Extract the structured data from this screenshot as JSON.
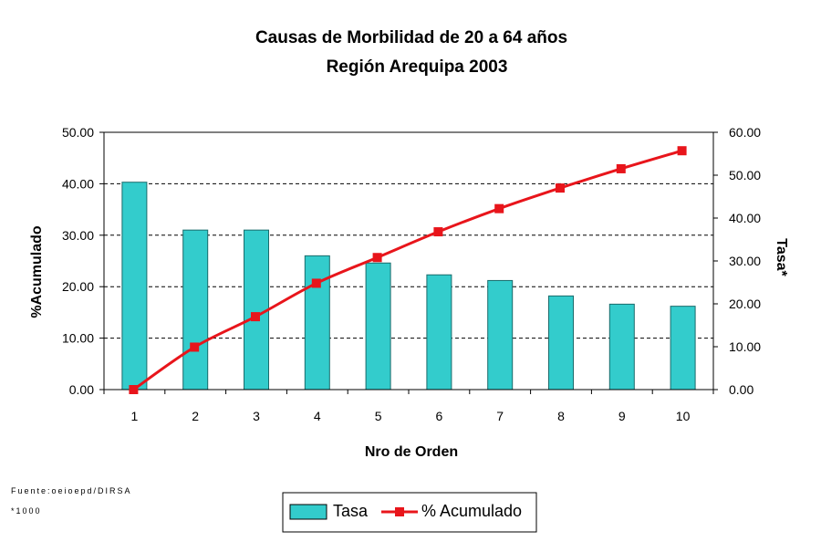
{
  "chart_data": {
    "type": "bar",
    "title": "Causas de Morbilidad de 20 a 64 años",
    "subtitle": "Región Arequipa 2003",
    "xlabel": "Nro de Orden",
    "ylabel_left": "%Acumulado",
    "ylabel_right": "Tasa*",
    "categories": [
      "1",
      "2",
      "3",
      "4",
      "5",
      "6",
      "7",
      "8",
      "9",
      "10"
    ],
    "y_left_lim": [
      0,
      50
    ],
    "y_left_ticks": [
      "0.00",
      "10.00",
      "20.00",
      "30.00",
      "40.00",
      "50.00"
    ],
    "y_right_lim": [
      0,
      60
    ],
    "y_right_ticks": [
      "0.00",
      "10.00",
      "20.00",
      "30.00",
      "40.00",
      "50.00",
      "60.00"
    ],
    "grid": true,
    "series": [
      {
        "name": "Tasa",
        "kind": "bar",
        "axis": "left",
        "color": "#33CCCC",
        "values": [
          40.3,
          31.0,
          31.0,
          26.0,
          24.6,
          22.3,
          21.2,
          18.2,
          16.6,
          16.2
        ]
      },
      {
        "name": "% Acumulado",
        "kind": "line",
        "axis": "right",
        "color": "#E8151B",
        "marker": "square",
        "values": [
          0.0,
          9.9,
          17.0,
          24.8,
          30.8,
          36.8,
          42.2,
          47.0,
          51.5,
          55.7
        ]
      }
    ],
    "legend": "bottom-center"
  },
  "footnotes": {
    "source": "Fuente:oeioepd/DIRSA",
    "note": "*1000"
  }
}
